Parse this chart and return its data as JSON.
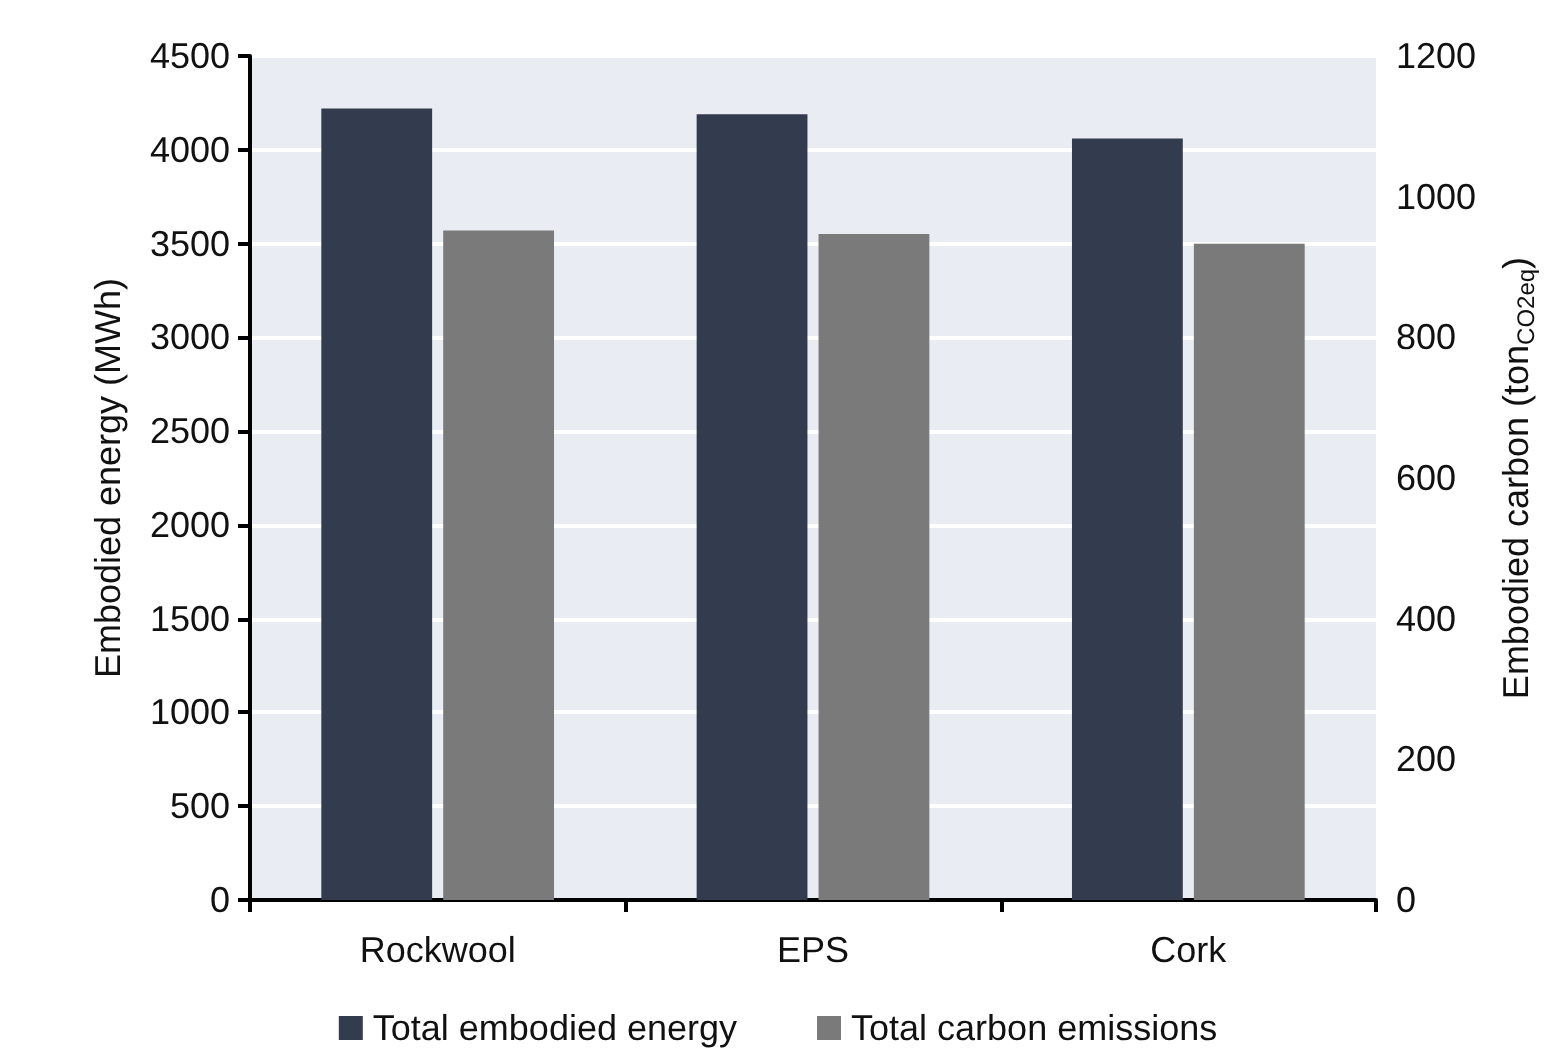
{
  "chart_data": {
    "type": "bar",
    "categories": [
      "Rockwool",
      "EPS",
      "Cork"
    ],
    "ylabel": "Embodied energy (MWh)",
    "y2label": "Embodied carbon (ton$_{CO2eq}$)",
    "series": [
      {
        "name": "Total embodied energy",
        "color": "#323c4e",
        "values": [
          4220,
          4190,
          4060
        ]
      },
      {
        "name": "Total carbon emissions",
        "color": "#7a7a7a",
        "values": [
          952,
          947,
          933
        ],
        "axis": "y2"
      }
    ],
    "ylim": [
      0,
      4500
    ],
    "yticks": [
      0,
      500,
      1000,
      1500,
      2000,
      2500,
      3000,
      3500,
      4000,
      4500
    ],
    "y2lim": [
      0,
      1200
    ],
    "y2ticks": [
      0,
      200,
      400,
      600,
      800,
      1000,
      1200
    ],
    "grid": "y",
    "legend": "bottom"
  }
}
